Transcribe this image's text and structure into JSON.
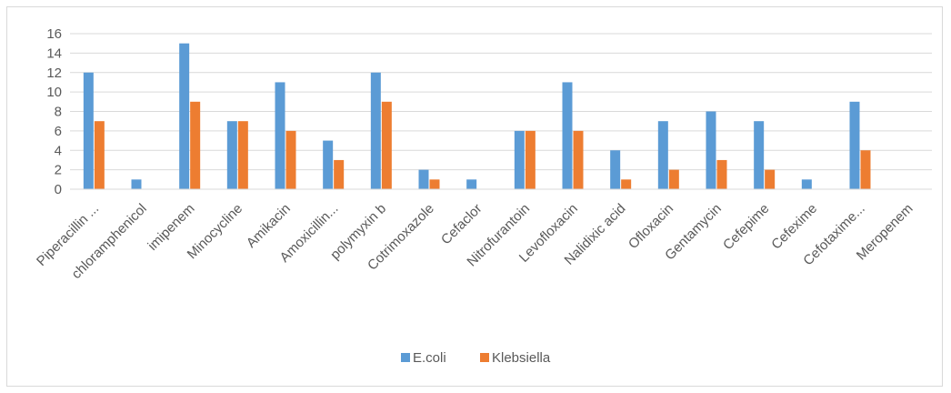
{
  "chart_data": {
    "type": "bar",
    "categories": [
      "Piperacillin ...",
      "chloramphenicol",
      "imipenem",
      "Minocycline",
      "Amikacin",
      "Amoxicillin...",
      "polymyxin b",
      "Cotrimoxazole",
      "Cefaclor",
      "Nitrofurantoin",
      "Levofloxacin",
      "Nalidixic acid",
      "Ofloxacin",
      "Gentamycin",
      "Cefepime",
      "Cefexime",
      "Cefotaxime...",
      "Meropenem"
    ],
    "series": [
      {
        "name": "E.coli",
        "color": "#5b9bd5",
        "values": [
          12,
          1,
          15,
          7,
          11,
          5,
          12,
          2,
          1,
          6,
          11,
          4,
          7,
          8,
          7,
          1,
          9,
          0
        ]
      },
      {
        "name": "Klebsiella",
        "color": "#ed7d31",
        "values": [
          7,
          0,
          9,
          7,
          6,
          3,
          9,
          1,
          0,
          6,
          6,
          1,
          2,
          3,
          2,
          0,
          4,
          0
        ]
      }
    ],
    "title": "",
    "xlabel": "",
    "ylabel": "",
    "ylim": [
      0,
      16
    ],
    "yticks": [
      "0",
      "2",
      "4",
      "6",
      "8",
      "10",
      "12",
      "14",
      "16"
    ],
    "grid": true,
    "legend_position": "bottom"
  }
}
